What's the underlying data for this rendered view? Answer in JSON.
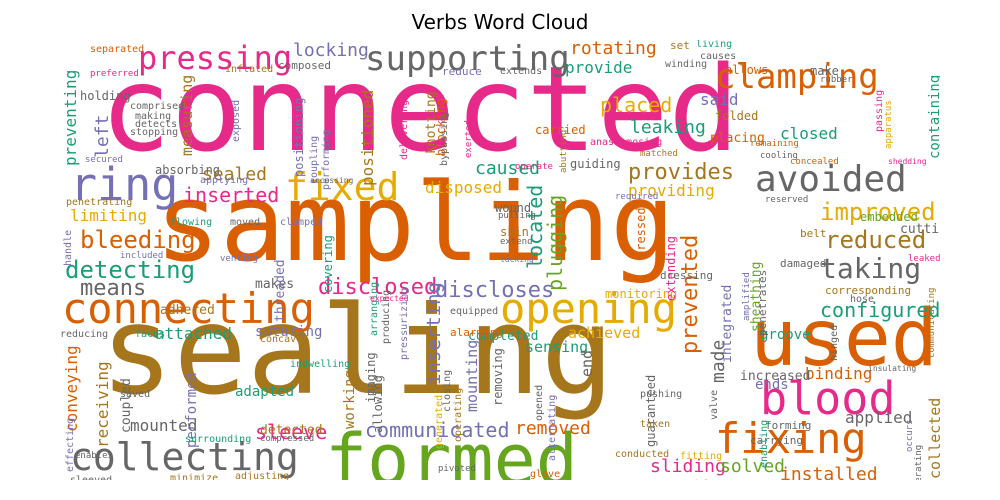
{
  "chart_data": {
    "type": "wordcloud",
    "title": "Verbs Word Cloud",
    "palette": [
      "#e7298a",
      "#d95f02",
      "#a6761d",
      "#666666",
      "#7570b3",
      "#1b9e77",
      "#e6ab02",
      "#66a61e"
    ],
    "words": [
      {
        "text": "connected",
        "weight": 100,
        "color": "#e7298a"
      },
      {
        "text": "sampling",
        "weight": 90,
        "color": "#d95f02"
      },
      {
        "text": "sealing",
        "weight": 88,
        "color": "#a6761d"
      },
      {
        "text": "formed",
        "weight": 55,
        "color": "#66a61e"
      },
      {
        "text": "used",
        "weight": 50,
        "color": "#d95f02"
      },
      {
        "text": "connecting",
        "weight": 38,
        "color": "#d95f02"
      },
      {
        "text": "opening",
        "weight": 36,
        "color": "#e6ab02"
      },
      {
        "text": "blood",
        "weight": 35,
        "color": "#e7298a"
      },
      {
        "text": "fixing",
        "weight": 34,
        "color": "#d95f02"
      },
      {
        "text": "collecting",
        "weight": 33,
        "color": "#666666"
      },
      {
        "text": "ring",
        "weight": 33,
        "color": "#7570b3"
      },
      {
        "text": "fixed",
        "weight": 30,
        "color": "#e6ab02"
      },
      {
        "text": "supporting",
        "weight": 30,
        "color": "#666666"
      },
      {
        "text": "pressing",
        "weight": 30,
        "color": "#e7298a"
      },
      {
        "text": "clamping",
        "weight": 29,
        "color": "#d95f02"
      },
      {
        "text": "avoided",
        "weight": 29,
        "color": "#666666"
      },
      {
        "text": "taking",
        "weight": 24,
        "color": "#666666"
      },
      {
        "text": "improved",
        "weight": 22,
        "color": "#e6ab02"
      },
      {
        "text": "reduced",
        "weight": 22,
        "color": "#a6761d"
      },
      {
        "text": "detecting",
        "weight": 22,
        "color": "#1b9e77"
      },
      {
        "text": "bleeding",
        "weight": 21,
        "color": "#d95f02"
      },
      {
        "text": "disclosed",
        "weight": 18,
        "color": "#e7298a"
      },
      {
        "text": "discloses",
        "weight": 18,
        "color": "#7570b3"
      },
      {
        "text": "inserted",
        "weight": 18,
        "color": "#e7298a"
      },
      {
        "text": "provides",
        "weight": 18,
        "color": "#a6761d"
      },
      {
        "text": "means",
        "weight": 17,
        "color": "#666666"
      },
      {
        "text": "configured",
        "weight": 17,
        "color": "#1b9e77"
      },
      {
        "text": "sleeve",
        "weight": 17,
        "color": "#e7298a"
      },
      {
        "text": "communicated",
        "weight": 16,
        "color": "#7570b3"
      },
      {
        "text": "removed",
        "weight": 15,
        "color": "#d95f02"
      },
      {
        "text": "sliding",
        "weight": 15,
        "color": "#e7298a"
      },
      {
        "text": "solved",
        "weight": 15,
        "color": "#66a61e"
      },
      {
        "text": "installed",
        "weight": 15,
        "color": "#d95f02"
      },
      {
        "text": "placed",
        "weight": 17,
        "color": "#e6ab02"
      },
      {
        "text": "leaking",
        "weight": 16,
        "color": "#1b9e77"
      },
      {
        "text": "located",
        "weight": 16,
        "color": "#1b9e77"
      },
      {
        "text": "plugging",
        "weight": 16,
        "color": "#66a61e"
      },
      {
        "text": "inserting",
        "weight": 15,
        "color": "#7570b3"
      },
      {
        "text": "prevented",
        "weight": 18,
        "color": "#d95f02"
      },
      {
        "text": "made",
        "weight": 15,
        "color": "#666666"
      },
      {
        "text": "caused",
        "weight": 15,
        "color": "#1b9e77"
      },
      {
        "text": "disposed",
        "weight": 14,
        "color": "#e6ab02"
      },
      {
        "text": "rotating",
        "weight": 14,
        "color": "#d95f02"
      },
      {
        "text": "provide",
        "weight": 13,
        "color": "#1b9e77"
      },
      {
        "text": "locking",
        "weight": 14,
        "color": "#7570b3"
      },
      {
        "text": "preventing",
        "weight": 14,
        "color": "#1b9e77"
      },
      {
        "text": "left",
        "weight": 14,
        "color": "#7570b3"
      },
      {
        "text": "positioned",
        "weight": 13,
        "color": "#a6761d"
      },
      {
        "text": "measuring",
        "weight": 12,
        "color": "#a6761d"
      },
      {
        "text": "sealed",
        "weight": 14,
        "color": "#a6761d"
      },
      {
        "text": "limiting",
        "weight": 13,
        "color": "#e6ab02"
      },
      {
        "text": "attached",
        "weight": 13,
        "color": "#1b9e77"
      },
      {
        "text": "achieved",
        "weight": 12,
        "color": "#e6ab02"
      },
      {
        "text": "mounted",
        "weight": 12,
        "color": "#666666"
      },
      {
        "text": "conveying",
        "weight": 12,
        "color": "#d95f02"
      },
      {
        "text": "receiving",
        "weight": 12,
        "color": "#a6761d"
      },
      {
        "text": "providing",
        "weight": 12,
        "color": "#e6ab02"
      },
      {
        "text": "said",
        "weight": 13,
        "color": "#7570b3"
      },
      {
        "text": "closed",
        "weight": 12,
        "color": "#1b9e77"
      },
      {
        "text": "containing",
        "weight": 11,
        "color": "#1b9e77"
      },
      {
        "text": "binding",
        "weight": 12,
        "color": "#d95f02"
      },
      {
        "text": "applied",
        "weight": 12,
        "color": "#666666"
      },
      {
        "text": "collected",
        "weight": 11,
        "color": "#a6761d"
      },
      {
        "text": "ends",
        "weight": 11,
        "color": "#7570b3"
      },
      {
        "text": "groove",
        "weight": 11,
        "color": "#1b9e77"
      },
      {
        "text": "mounting",
        "weight": 11,
        "color": "#7570b3"
      },
      {
        "text": "sensing",
        "weight": 11,
        "color": "#1b9e77"
      },
      {
        "text": "end",
        "weight": 11,
        "color": "#666666"
      },
      {
        "text": "adapted",
        "weight": 10,
        "color": "#1b9e77"
      },
      {
        "text": "performed",
        "weight": 10,
        "color": "#7570b3"
      },
      {
        "text": "detected",
        "weight": 10,
        "color": "#a6761d"
      },
      {
        "text": "suturing",
        "weight": 10,
        "color": "#7570b3"
      },
      {
        "text": "completed",
        "weight": 9,
        "color": "#1b9e77"
      },
      {
        "text": "working",
        "weight": 9,
        "color": "#a6761d"
      },
      {
        "text": "increased",
        "weight": 9,
        "color": "#666666"
      },
      {
        "text": "guaranteed",
        "weight": 8,
        "color": "#666666"
      },
      {
        "text": "coupled",
        "weight": 9,
        "color": "#666666"
      },
      {
        "text": "makes",
        "weight": 9,
        "color": "#666666"
      },
      {
        "text": "adhered",
        "weight": 9,
        "color": "#a6761d"
      },
      {
        "text": "threaded",
        "weight": 9,
        "color": "#7570b3"
      },
      {
        "text": "cutting",
        "weight": 9,
        "color": "#666666"
      },
      {
        "text": "sheathing",
        "weight": 9,
        "color": "#66a61e"
      },
      {
        "text": "integrated",
        "weight": 9,
        "color": "#7570b3"
      },
      {
        "text": "embedded",
        "weight": 8,
        "color": "#66a61e"
      },
      {
        "text": "guiding",
        "weight": 8,
        "color": "#666666"
      },
      {
        "text": "blocking",
        "weight": 8,
        "color": "#d95f02"
      },
      {
        "text": "positioning",
        "weight": 8,
        "color": "#7570b3"
      },
      {
        "text": "absorbing",
        "weight": 9,
        "color": "#666666"
      },
      {
        "text": "carried",
        "weight": 8,
        "color": "#d95f02"
      },
      {
        "text": "placing",
        "weight": 9,
        "color": "#d95f02"
      },
      {
        "text": "folded",
        "weight": 8,
        "color": "#a6761d"
      },
      {
        "text": "knotting",
        "weight": 9,
        "color": "#a6761d"
      },
      {
        "text": "holding",
        "weight": 8,
        "color": "#666666"
      },
      {
        "text": "allows",
        "weight": 8,
        "color": "#d95f02"
      },
      {
        "text": "make",
        "weight": 8,
        "color": "#666666"
      },
      {
        "text": "monitoring",
        "weight": 8,
        "color": "#e6ab02"
      },
      {
        "text": "extending",
        "weight": 8,
        "color": "#e7298a"
      },
      {
        "text": "pressed",
        "weight": 8,
        "color": "#d95f02"
      },
      {
        "text": "wound",
        "weight": 8,
        "color": "#666666"
      },
      {
        "text": "skin",
        "weight": 8,
        "color": "#a6761d"
      },
      {
        "text": "covering",
        "weight": 8,
        "color": "#1b9e77"
      },
      {
        "text": "imaging",
        "weight": 8,
        "color": "#666666"
      },
      {
        "text": "removing",
        "weight": 8,
        "color": "#666666"
      },
      {
        "text": "alarming",
        "weight": 7,
        "color": "#d95f02"
      },
      {
        "text": "dressing",
        "weight": 6,
        "color": "#666666"
      },
      {
        "text": "penetrates",
        "weight": 7,
        "color": "#666666"
      },
      {
        "text": "corresponding",
        "weight": 7,
        "color": "#a6761d"
      },
      {
        "text": "belt",
        "weight": 7,
        "color": "#a6761d"
      },
      {
        "text": "damaged",
        "weight": 6,
        "color": "#666666"
      },
      {
        "text": "forming",
        "weight": 7,
        "color": "#666666"
      },
      {
        "text": "carrying",
        "weight": 7,
        "color": "#666666"
      },
      {
        "text": "valve",
        "weight": 6,
        "color": "#666666"
      },
      {
        "text": "hose",
        "weight": 6,
        "color": "#666666"
      },
      {
        "text": "hinged",
        "weight": 6,
        "color": "#666666"
      },
      {
        "text": "pushing",
        "weight": 6,
        "color": "#666666"
      },
      {
        "text": "fitting",
        "weight": 6,
        "color": "#e6ab02"
      },
      {
        "text": "taken",
        "weight": 6,
        "color": "#a6761d"
      },
      {
        "text": "conducted",
        "weight": 6,
        "color": "#a6761d"
      },
      {
        "text": "glove",
        "weight": 6,
        "color": "#d95f02"
      },
      {
        "text": "model",
        "weight": 6,
        "color": "#e6ab02"
      },
      {
        "text": "opened",
        "weight": 6,
        "color": "#666666"
      },
      {
        "text": "alternating",
        "weight": 6,
        "color": "#7570b3"
      },
      {
        "text": "generated",
        "weight": 6,
        "color": "#e6ab02"
      },
      {
        "text": "closing",
        "weight": 6,
        "color": "#666666"
      },
      {
        "text": "operating",
        "weight": 6,
        "color": "#a6761d"
      },
      {
        "text": "allowing",
        "weight": 7,
        "color": "#666666"
      },
      {
        "text": "indwelling",
        "weight": 6,
        "color": "#1b9e77"
      },
      {
        "text": "equipped",
        "weight": 6,
        "color": "#666666"
      },
      {
        "text": "producing",
        "weight": 6,
        "color": "#666666"
      },
      {
        "text": "pressurizing",
        "weight": 6,
        "color": "#7570b3"
      },
      {
        "text": "arranging",
        "weight": 6,
        "color": "#1b9e77"
      },
      {
        "text": "moved",
        "weight": 6,
        "color": "#666666"
      },
      {
        "text": "clamped",
        "weight": 6,
        "color": "#7570b3"
      },
      {
        "text": "flowing",
        "weight": 6,
        "color": "#1b9e77"
      },
      {
        "text": "handle",
        "weight": 6,
        "color": "#7570b3"
      },
      {
        "text": "included",
        "weight": 5,
        "color": "#7570b3"
      },
      {
        "text": "venting",
        "weight": 5,
        "color": "#7570b3"
      },
      {
        "text": "reducing",
        "weight": 6,
        "color": "#666666"
      },
      {
        "text": "faces",
        "weight": 6,
        "color": "#1b9e77"
      },
      {
        "text": "concave",
        "weight": 6,
        "color": "#a6761d"
      },
      {
        "text": "saved",
        "weight": 6,
        "color": "#666666"
      },
      {
        "text": "surrounding",
        "weight": 6,
        "color": "#1b9e77"
      },
      {
        "text": "enables",
        "weight": 5,
        "color": "#666666"
      },
      {
        "text": "effecting",
        "weight": 6,
        "color": "#7570b3"
      },
      {
        "text": "compressed",
        "weight": 5,
        "color": "#666666"
      },
      {
        "text": "minimize",
        "weight": 6,
        "color": "#a6761d"
      },
      {
        "text": "adjusting",
        "weight": 6,
        "color": "#a6761d"
      },
      {
        "text": "sleeved",
        "weight": 6,
        "color": "#666666"
      },
      {
        "text": "penetrating",
        "weight": 6,
        "color": "#a6761d"
      },
      {
        "text": "secured",
        "weight": 5,
        "color": "#7570b3"
      },
      {
        "text": "applying",
        "weight": 6,
        "color": "#7570b3"
      },
      {
        "text": "stopping",
        "weight": 6,
        "color": "#666666"
      },
      {
        "text": "comprised",
        "weight": 6,
        "color": "#666666"
      },
      {
        "text": "making",
        "weight": 6,
        "color": "#666666"
      },
      {
        "text": "detects",
        "weight": 6,
        "color": "#666666"
      },
      {
        "text": "exposed",
        "weight": 6,
        "color": "#7570b3"
      },
      {
        "text": "coupling",
        "weight": 6,
        "color": "#7570b3"
      },
      {
        "text": "performing",
        "weight": 6,
        "color": "#7570b3"
      },
      {
        "text": "delivering",
        "weight": 6,
        "color": "#e7298a"
      },
      {
        "text": "bypassing",
        "weight": 6,
        "color": "#666666"
      },
      {
        "text": "exerted",
        "weight": 5,
        "color": "#e7298a"
      },
      {
        "text": "extend",
        "weight": 5,
        "color": "#666666"
      },
      {
        "text": "pulling",
        "weight": 5,
        "color": "#666666"
      },
      {
        "text": "tacking",
        "weight": 4,
        "color": "#7570b3"
      },
      {
        "text": "operate",
        "weight": 5,
        "color": "#e7298a"
      },
      {
        "text": "required",
        "weight": 5,
        "color": "#7570b3"
      },
      {
        "text": "matched",
        "weight": 5,
        "color": "#a6761d"
      },
      {
        "text": "cooling",
        "weight": 5,
        "color": "#666666"
      },
      {
        "text": "concealed",
        "weight": 5,
        "color": "#d95f02"
      },
      {
        "text": "shedding",
        "weight": 4,
        "color": "#e7298a"
      },
      {
        "text": "reserved",
        "weight": 5,
        "color": "#666666"
      },
      {
        "text": "amplified",
        "weight": 5,
        "color": "#7570b3"
      },
      {
        "text": "leaked",
        "weight": 5,
        "color": "#e7298a"
      },
      {
        "text": "communicating",
        "weight": 5,
        "color": "#a6761d"
      },
      {
        "text": "insulating",
        "weight": 4,
        "color": "#666666"
      },
      {
        "text": "occurs",
        "weight": 5,
        "color": "#7570b3"
      },
      {
        "text": "generating",
        "weight": 5,
        "color": "#666666"
      },
      {
        "text": "pivoted",
        "weight": 5,
        "color": "#666666"
      },
      {
        "text": "expected",
        "weight": 4,
        "color": "#e7298a"
      },
      {
        "text": "separated",
        "weight": 6,
        "color": "#d95f02"
      },
      {
        "text": "preferred",
        "weight": 5,
        "color": "#e7298a"
      },
      {
        "text": "inflated",
        "weight": 6,
        "color": "#a6761d"
      },
      {
        "text": "composed",
        "weight": 7,
        "color": "#666666"
      },
      {
        "text": "reduce",
        "weight": 7,
        "color": "#7570b3"
      },
      {
        "text": "extends",
        "weight": 6,
        "color": "#666666"
      },
      {
        "text": "set",
        "weight": 7,
        "color": "#a6761d"
      },
      {
        "text": "living",
        "weight": 6,
        "color": "#1b9e77"
      },
      {
        "text": "causes",
        "weight": 6,
        "color": "#666666"
      },
      {
        "text": "winding",
        "weight": 6,
        "color": "#666666"
      },
      {
        "text": "rubber",
        "weight": 5,
        "color": "#666666"
      },
      {
        "text": "passing",
        "weight": 6,
        "color": "#e7298a"
      },
      {
        "text": "apparatus",
        "weight": 5,
        "color": "#e6ab02"
      },
      {
        "text": "activates",
        "weight": 5,
        "color": "#1b9e77"
      },
      {
        "text": "accessing",
        "weight": 4,
        "color": "#666666"
      },
      {
        "text": "abutting",
        "weight": 5,
        "color": "#a6761d"
      },
      {
        "text": "anastomosing",
        "weight": 6,
        "color": "#e7298a"
      },
      {
        "text": "enabling",
        "weight": 6,
        "color": "#1b9e77"
      },
      {
        "text": "remaining",
        "weight": 5,
        "color": "#d95f02"
      }
    ]
  }
}
